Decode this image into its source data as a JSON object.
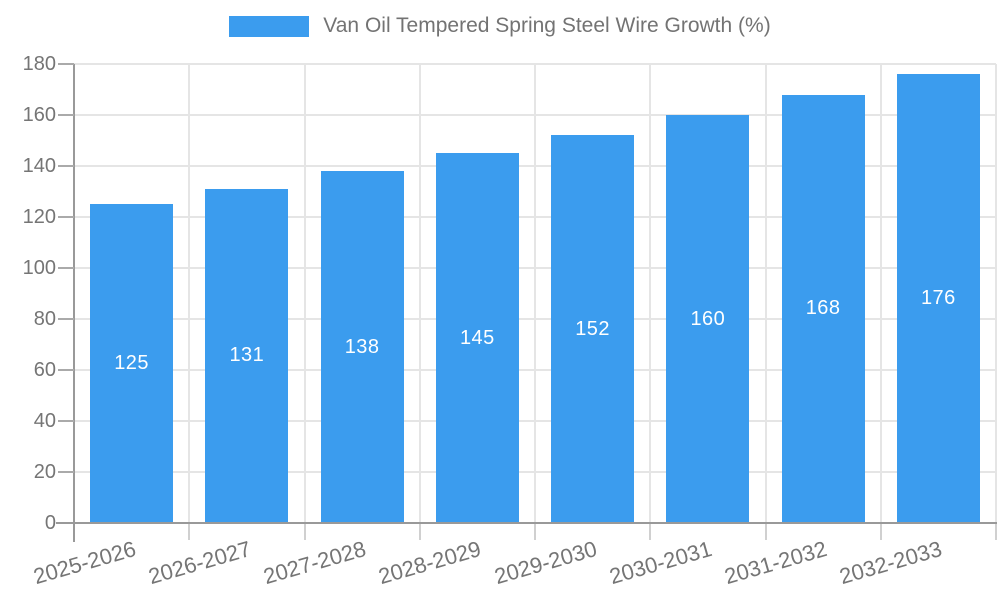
{
  "legend": {
    "label": "Van Oil Tempered Spring Steel Wire Growth (%)"
  },
  "chart_data": {
    "type": "bar",
    "title": "Van Oil Tempered Spring Steel Wire Growth (%)",
    "categories": [
      "2025-2026",
      "2026-2027",
      "2027-2028",
      "2028-2029",
      "2029-2030",
      "2030-2031",
      "2031-2032",
      "2032-2033"
    ],
    "values": [
      125,
      131,
      138,
      145,
      152,
      160,
      168,
      176
    ],
    "xlabel": "",
    "ylabel": "",
    "ylim": [
      0,
      180
    ],
    "yticks": [
      0,
      20,
      40,
      60,
      80,
      100,
      120,
      140,
      160,
      180
    ],
    "grid": true,
    "legend_position": "top-center",
    "value_labels": "centered-inside-bars-white"
  },
  "colors": {
    "background": "#FFFFFF",
    "bar": "#3B9CEE",
    "gridline": "#E5E5E5",
    "axis": "#999999",
    "y_tick": "#AAAAAA",
    "x_tick": "#D0D0D0",
    "tick_label": "#757575",
    "legend_text": "#737373",
    "value_label": "#FFFFFF"
  }
}
